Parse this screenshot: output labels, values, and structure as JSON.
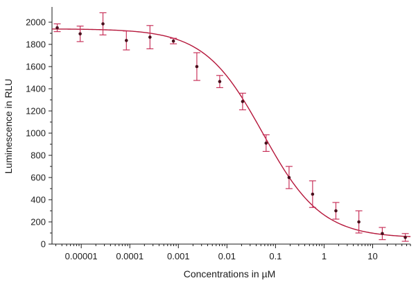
{
  "chart_data": {
    "type": "scatter",
    "title": "",
    "xlabel": "Concentrations in µM",
    "ylabel": "Luminescence in RLU",
    "x_scale": "log",
    "xlim": [
      2.5e-06,
      60
    ],
    "ylim": [
      0,
      2100
    ],
    "x_ticks": [
      1e-05,
      0.0001,
      0.001,
      0.01,
      0.1,
      1,
      10
    ],
    "x_tick_labels": [
      "0.00001",
      "0.0001",
      "0.001",
      "0.01",
      "0.1",
      "1",
      "10"
    ],
    "y_ticks": [
      0,
      200,
      400,
      600,
      800,
      1000,
      1200,
      1400,
      1600,
      1800,
      2000
    ],
    "y_tick_labels": [
      "0",
      "200",
      "400",
      "600",
      "800",
      "1000",
      "1200",
      "1400",
      "1600",
      "1800",
      "2000"
    ],
    "grid": false,
    "colors": {
      "curve": "#b5163a",
      "errorbar": "#c8325a",
      "point": "#4a0f1c",
      "axis": "#1a1a1a"
    },
    "points": [
      {
        "x": 3.2e-06,
        "y": 1950,
        "err": 35
      },
      {
        "x": 9.5e-06,
        "y": 1895,
        "err": 70
      },
      {
        "x": 2.8e-05,
        "y": 1985,
        "err": 100
      },
      {
        "x": 8.5e-05,
        "y": 1835,
        "err": 85
      },
      {
        "x": 0.00026,
        "y": 1865,
        "err": 105
      },
      {
        "x": 0.00079,
        "y": 1830,
        "err": 25
      },
      {
        "x": 0.0024,
        "y": 1600,
        "err": 125
      },
      {
        "x": 0.0071,
        "y": 1465,
        "err": 55
      },
      {
        "x": 0.021,
        "y": 1285,
        "err": 75
      },
      {
        "x": 0.064,
        "y": 910,
        "err": 75
      },
      {
        "x": 0.19,
        "y": 600,
        "err": 100
      },
      {
        "x": 0.58,
        "y": 450,
        "err": 120
      },
      {
        "x": 1.75,
        "y": 300,
        "err": 75
      },
      {
        "x": 5.2,
        "y": 200,
        "err": 100
      },
      {
        "x": 15.8,
        "y": 95,
        "err": 55
      },
      {
        "x": 47,
        "y": 60,
        "err": 35
      }
    ],
    "fit_curve": {
      "model": "4PL",
      "top": 1940,
      "bottom": 55,
      "ec50": 0.055,
      "hill": 0.72
    }
  }
}
